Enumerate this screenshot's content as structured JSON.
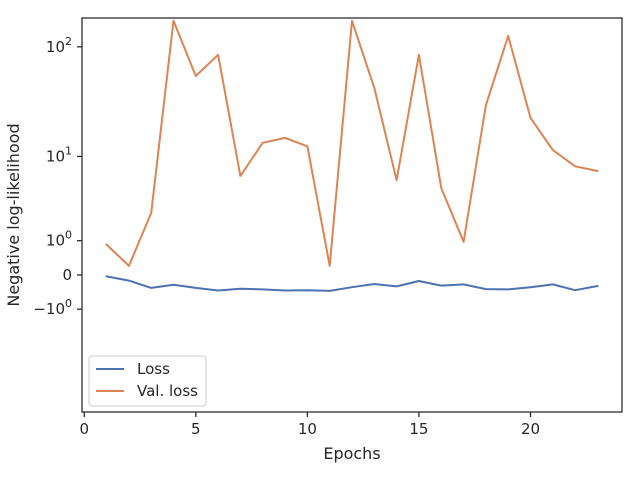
{
  "chart_data": {
    "type": "line",
    "xlabel": "Epochs",
    "ylabel": "Negative log-likelihood",
    "xlim": [
      -0.1,
      24.1
    ],
    "yscale": "symlog",
    "ylim": [
      -15,
      180
    ],
    "x_ticks": [
      0,
      5,
      10,
      15,
      20
    ],
    "y_ticks": [
      {
        "value": 100,
        "base": "10",
        "exp": "2"
      },
      {
        "value": 10,
        "base": "10",
        "exp": "1"
      },
      {
        "value": 1,
        "base": "10",
        "exp": "0"
      },
      {
        "value": 0,
        "base": "0",
        "exp": ""
      },
      {
        "value": -1,
        "base": "−10",
        "exp": "0"
      }
    ],
    "grid": false,
    "legend_position": "lower-left",
    "x": [
      1,
      2,
      3,
      4,
      5,
      6,
      7,
      8,
      9,
      10,
      11,
      12,
      13,
      14,
      15,
      16,
      17,
      18,
      19,
      20,
      21,
      22,
      23
    ],
    "series": [
      {
        "name": "Loss",
        "color": "#4c72b0",
        "values": [
          -0.03,
          -0.12,
          -0.3,
          -0.22,
          -0.3,
          -0.37,
          -0.32,
          -0.34,
          -0.37,
          -0.36,
          -0.38,
          -0.28,
          -0.2,
          -0.26,
          -0.13,
          -0.24,
          -0.21,
          -0.33,
          -0.34,
          -0.28,
          -0.21,
          -0.36,
          -0.25
        ]
      },
      {
        "name": "Val. loss",
        "color": "#dd8452",
        "values": [
          0.85,
          0.2,
          2.5,
          170,
          55,
          85,
          6.4,
          13.5,
          15,
          12.5,
          0.2,
          170,
          43,
          5.8,
          85,
          4.8,
          0.95,
          30,
          125,
          23,
          11.5,
          8,
          7.2
        ]
      }
    ]
  }
}
